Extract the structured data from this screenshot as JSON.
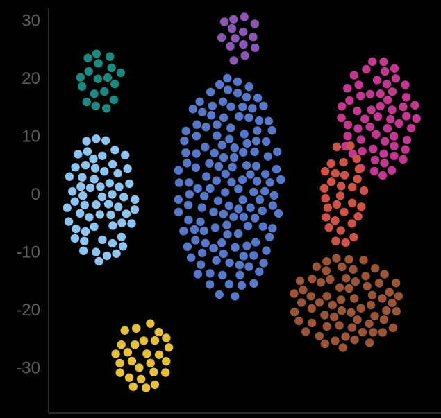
{
  "chart_data": {
    "type": "scatter",
    "title": "",
    "xlabel": "",
    "ylabel": "",
    "ylim": [
      -38,
      32
    ],
    "xlim": [
      -45,
      68
    ],
    "grid": false,
    "legend": "none",
    "y_ticks": [
      {
        "value": 30,
        "label": "30"
      },
      {
        "value": 20,
        "label": "20"
      },
      {
        "value": 10,
        "label": "10"
      },
      {
        "value": 0,
        "label": "0"
      },
      {
        "value": -10,
        "label": "-10"
      },
      {
        "value": -20,
        "label": "-20"
      },
      {
        "value": -30,
        "label": "-30"
      }
    ],
    "clusters": [
      {
        "color": "#1a8a80",
        "center": [
          -30,
          19.5
        ],
        "spread": [
          6,
          5
        ],
        "count": 60
      },
      {
        "color": "#8b57b5",
        "center": [
          10,
          27
        ],
        "spread": [
          5.5,
          4.5
        ],
        "count": 40
      },
      {
        "color": "#5777c8",
        "center": [
          7,
          1
        ],
        "spread": [
          15,
          19
        ],
        "count": 290
      },
      {
        "color": "#8ec4f2",
        "center": [
          -30,
          -1
        ],
        "spread": [
          10,
          11
        ],
        "count": 130
      },
      {
        "color": "#c23891",
        "center": [
          50,
          13
        ],
        "spread": [
          11,
          10
        ],
        "count": 140
      },
      {
        "color": "#cd5248",
        "center": [
          40,
          0
        ],
        "spread": [
          6,
          9
        ],
        "count": 70
      },
      {
        "color": "#9a5437",
        "center": [
          41,
          -19
        ],
        "spread": [
          16,
          8
        ],
        "count": 140
      },
      {
        "color": "#e7c039",
        "center": [
          -18,
          -28
        ],
        "spread": [
          8,
          6
        ],
        "count": 70
      }
    ]
  }
}
